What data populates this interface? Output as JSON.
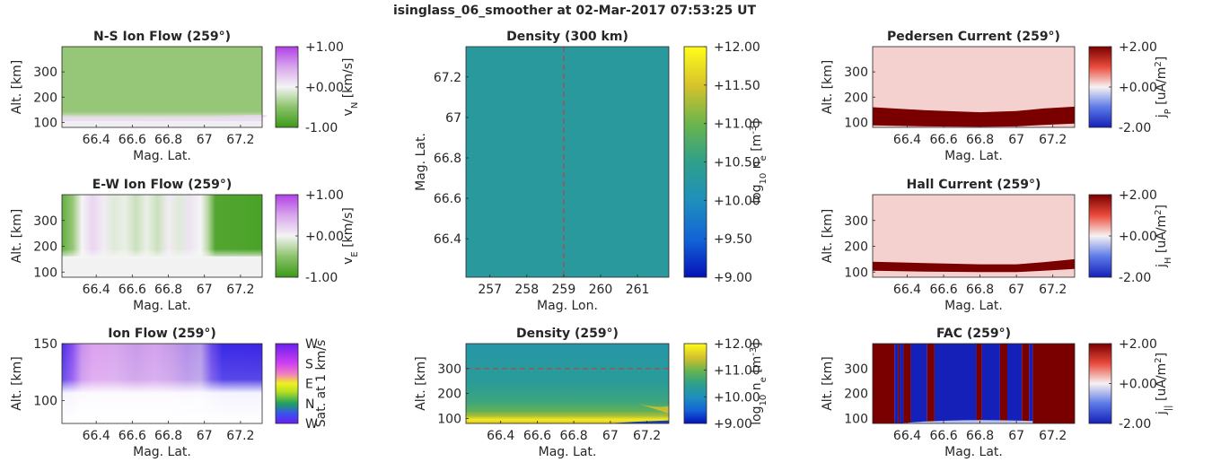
{
  "figure": {
    "title": "isinglass_06_smoother at 02-Mar-2017 07:53:25 UT"
  },
  "chart_data": [
    {
      "id": "ns_ion_flow",
      "type": "heatmap",
      "title": "N-S Ion Flow (259°)",
      "xlabel": "Mag. Lat.",
      "ylabel": "Alt. [km]",
      "xlim": [
        66.21,
        67.32
      ],
      "ylim": [
        80,
        400
      ],
      "xticks": [
        66.4,
        66.6,
        66.8,
        67,
        67.2
      ],
      "xticklabels": [
        "66.4",
        "66.6",
        "66.8",
        "67",
        "67.2"
      ],
      "yticks": [
        100,
        200,
        300
      ],
      "yticklabels": [
        "100",
        "200",
        "300"
      ],
      "colorbar": {
        "label": "vN [km/s]",
        "label_main": "v",
        "label_sub": "N",
        "label_tail": " [km/s]",
        "range": [
          -1,
          1
        ],
        "ticks": [
          -1,
          0,
          1
        ],
        "ticklabels": [
          "-1.00",
          "+0.00",
          "+1.00"
        ],
        "colormap": "green-white-purple"
      },
      "field": {
        "description": "nearly uniform weak southward flow above ~140 km, near-zero in lower E-region",
        "value_above_140km": -0.45,
        "value_below_140km": 0.05
      }
    },
    {
      "id": "ew_ion_flow",
      "type": "heatmap",
      "title": "E-W Ion Flow (259°)",
      "xlabel": "Mag. Lat.",
      "ylabel": "Alt. [km]",
      "xlim": [
        66.21,
        67.32
      ],
      "ylim": [
        80,
        400
      ],
      "xticks": [
        66.4,
        66.6,
        66.8,
        67,
        67.2
      ],
      "xticklabels": [
        "66.4",
        "66.6",
        "66.8",
        "67",
        "67.2"
      ],
      "yticks": [
        100,
        200,
        300
      ],
      "yticklabels": [
        "100",
        "200",
        "300"
      ],
      "colorbar": {
        "label": "vE [km/s]",
        "label_main": "v",
        "label_sub": "E",
        "label_tail": " [km/s]",
        "range": [
          -1,
          1
        ],
        "ticks": [
          -1,
          0,
          1
        ],
        "ticklabels": [
          "-1.00",
          "+0.00",
          "+1.00"
        ],
        "colormap": "green-white-purple"
      },
      "columns": [
        {
          "lat": 66.21,
          "value": -0.75
        },
        {
          "lat": 66.27,
          "value": -0.45
        },
        {
          "lat": 66.32,
          "value": 0.0
        },
        {
          "lat": 66.38,
          "value": 0.2
        },
        {
          "lat": 66.44,
          "value": 0.05
        },
        {
          "lat": 66.5,
          "value": -0.1
        },
        {
          "lat": 66.56,
          "value": -0.05
        },
        {
          "lat": 66.62,
          "value": -0.2
        },
        {
          "lat": 66.68,
          "value": -0.05
        },
        {
          "lat": 66.74,
          "value": -0.2
        },
        {
          "lat": 66.8,
          "value": 0.05
        },
        {
          "lat": 66.86,
          "value": -0.1
        },
        {
          "lat": 66.92,
          "value": 0.1
        },
        {
          "lat": 66.98,
          "value": 0.0
        },
        {
          "lat": 67.02,
          "value": -0.3
        },
        {
          "lat": 67.06,
          "value": -0.85
        },
        {
          "lat": 67.32,
          "value": -0.9
        }
      ]
    },
    {
      "id": "ion_flow",
      "type": "heatmap",
      "title": "Ion Flow (259°)",
      "xlabel": "Mag. Lat.",
      "ylabel": "Alt. [km]",
      "xlim": [
        66.21,
        67.32
      ],
      "ylim": [
        80,
        150
      ],
      "xticks": [
        66.4,
        66.6,
        66.8,
        67,
        67.2
      ],
      "xticklabels": [
        "66.4",
        "66.6",
        "66.8",
        "67",
        "67.2"
      ],
      "yticks": [
        100,
        150
      ],
      "yticklabels": [
        "100",
        "150"
      ],
      "colorbar": {
        "label": "Sat. at 1 km/s",
        "ticklabels": [
          "W",
          "N",
          "E",
          "S",
          "W"
        ],
        "colormap": "direction-wheel"
      },
      "columns": [
        {
          "lat": 66.21,
          "hex": "#4a2ee8"
        },
        {
          "lat": 66.27,
          "hex": "#8a4ff0"
        },
        {
          "lat": 66.32,
          "hex": "#c890ee"
        },
        {
          "lat": 66.38,
          "hex": "#dca0ef"
        },
        {
          "lat": 66.5,
          "hex": "#d8a6ee"
        },
        {
          "lat": 66.62,
          "hex": "#c99ae8"
        },
        {
          "lat": 66.72,
          "hex": "#d4a2ee"
        },
        {
          "lat": 66.82,
          "hex": "#c79ae9"
        },
        {
          "lat": 66.9,
          "hex": "#b48ee8"
        },
        {
          "lat": 66.98,
          "hex": "#b69be8"
        },
        {
          "lat": 67.04,
          "hex": "#6a48ea"
        },
        {
          "lat": 67.1,
          "hex": "#3a28e6"
        },
        {
          "lat": 67.32,
          "hex": "#3a26e4"
        }
      ]
    },
    {
      "id": "density_300km",
      "type": "heatmap",
      "title": "Density (300 km)",
      "xlabel": "Mag. Lon.",
      "ylabel": "Mag. Lat.",
      "xlim": [
        256.35,
        261.85
      ],
      "ylim": [
        66.21,
        67.35
      ],
      "xticks": [
        257,
        258,
        259,
        260,
        261
      ],
      "xticklabels": [
        "257",
        "258",
        "259",
        "260",
        "261"
      ],
      "yticks": [
        66.4,
        66.6,
        66.8,
        67,
        67.2
      ],
      "yticklabels": [
        "66.4",
        "66.6",
        "66.8",
        "67",
        "67.2"
      ],
      "colorbar": {
        "label": "log10 ne [m-3]",
        "range": [
          9,
          12
        ],
        "ticks": [
          9,
          9.5,
          10,
          10.5,
          11,
          11.5,
          12
        ],
        "ticklabels": [
          "+9.00",
          "+9.50",
          "+10.00",
          "+10.50",
          "+11.00",
          "+11.50",
          "+12.00"
        ],
        "colormap": "parula"
      },
      "field_log10_ne": 10.3,
      "marker_line": {
        "orientation": "vertical",
        "value": 259,
        "color": "#d93030"
      }
    },
    {
      "id": "density_259",
      "type": "heatmap",
      "title": "Density (259°)",
      "xlabel": "Mag. Lat.",
      "ylabel": "Alt. [km]",
      "xlim": [
        66.21,
        67.32
      ],
      "ylim": [
        80,
        400
      ],
      "xticks": [
        66.4,
        66.6,
        66.8,
        67,
        67.2
      ],
      "xticklabels": [
        "66.4",
        "66.6",
        "66.8",
        "67",
        "67.2"
      ],
      "yticks": [
        100,
        200,
        300
      ],
      "yticklabels": [
        "100",
        "200",
        "300"
      ],
      "colorbar": {
        "label": "log10 ne [m-3]",
        "range": [
          9,
          12
        ],
        "ticks": [
          9,
          10,
          11,
          12
        ],
        "ticklabels": [
          "+9.00",
          "+10.00",
          "+11.00",
          "+12.00"
        ],
        "colormap": "parula"
      },
      "profile": [
        {
          "alt": 80,
          "value": 11.5
        },
        {
          "alt": 95,
          "value": 11.85
        },
        {
          "alt": 110,
          "value": 11.3
        },
        {
          "alt": 130,
          "value": 10.9
        },
        {
          "alt": 170,
          "value": 10.6
        },
        {
          "alt": 250,
          "value": 10.35
        },
        {
          "alt": 400,
          "value": 10.2
        }
      ],
      "marker_line": {
        "orientation": "horizontal",
        "value": 300,
        "color": "#d93030"
      }
    },
    {
      "id": "pedersen_current",
      "type": "heatmap",
      "title": "Pedersen Current (259°)",
      "xlabel": "Mag. Lat.",
      "ylabel": "Alt. [km]",
      "xlim": [
        66.21,
        67.32
      ],
      "ylim": [
        80,
        400
      ],
      "xticks": [
        66.4,
        66.6,
        66.8,
        67,
        67.2
      ],
      "xticklabels": [
        "66.4",
        "66.6",
        "66.8",
        "67",
        "67.2"
      ],
      "yticks": [
        100,
        200,
        300
      ],
      "yticklabels": [
        "100",
        "200",
        "300"
      ],
      "colorbar": {
        "label": "jP [uA/m2]",
        "label_main": "j",
        "label_sub": "P",
        "label_tail": " [uA/m",
        "label_sup": "2",
        "label_end": "]",
        "range": [
          -2,
          2
        ],
        "ticks": [
          -2,
          0,
          2
        ],
        "ticklabels": [
          "-2.00",
          "+0.00",
          "+2.00"
        ],
        "colormap": "blue-white-red"
      },
      "band": {
        "value": 2.0,
        "background": 0.2,
        "upper_km": [
          [
            66.21,
            160
          ],
          [
            66.5,
            148
          ],
          [
            66.8,
            140
          ],
          [
            67.0,
            145
          ],
          [
            67.15,
            155
          ],
          [
            67.32,
            162
          ]
        ],
        "lower_km": [
          [
            66.21,
            88
          ],
          [
            66.5,
            84
          ],
          [
            66.8,
            82
          ],
          [
            67.0,
            84
          ],
          [
            67.15,
            90
          ],
          [
            67.32,
            95
          ]
        ]
      }
    },
    {
      "id": "hall_current",
      "type": "heatmap",
      "title": "Hall Current (259°)",
      "xlabel": "Mag. Lat.",
      "ylabel": "Alt. [km]",
      "xlim": [
        66.21,
        67.32
      ],
      "ylim": [
        80,
        400
      ],
      "xticks": [
        66.4,
        66.6,
        66.8,
        67,
        67.2
      ],
      "xticklabels": [
        "66.4",
        "66.6",
        "66.8",
        "67",
        "67.2"
      ],
      "yticks": [
        100,
        200,
        300
      ],
      "yticklabels": [
        "100",
        "200",
        "300"
      ],
      "colorbar": {
        "label": "jH [uA/m2]",
        "label_main": "j",
        "label_sub": "H",
        "label_tail": " [uA/m",
        "label_sup": "2",
        "label_end": "]",
        "range": [
          -2,
          2
        ],
        "ticks": [
          -2,
          0,
          2
        ],
        "ticklabels": [
          "-2.00",
          "+0.00",
          "+2.00"
        ],
        "colormap": "blue-white-red"
      },
      "band": {
        "value": 2.0,
        "background": 0.2,
        "upper_km": [
          [
            66.21,
            140
          ],
          [
            66.5,
            135
          ],
          [
            66.8,
            130
          ],
          [
            67.0,
            130
          ],
          [
            67.15,
            138
          ],
          [
            67.32,
            150
          ]
        ],
        "lower_km": [
          [
            66.21,
            105
          ],
          [
            66.5,
            102
          ],
          [
            66.8,
            100
          ],
          [
            67.0,
            100
          ],
          [
            67.15,
            105
          ],
          [
            67.32,
            112
          ]
        ]
      }
    },
    {
      "id": "fac",
      "type": "heatmap",
      "title": "FAC (259°)",
      "xlabel": "Mag. Lat.",
      "ylabel": "Alt. [km]",
      "xlim": [
        66.21,
        67.32
      ],
      "ylim": [
        80,
        400
      ],
      "xticks": [
        66.4,
        66.6,
        66.8,
        67,
        67.2
      ],
      "xticklabels": [
        "66.4",
        "66.6",
        "66.8",
        "67",
        "67.2"
      ],
      "yticks": [
        100,
        200,
        300
      ],
      "yticklabels": [
        "100",
        "200",
        "300"
      ],
      "colorbar": {
        "label": "j|| [uA/m2]",
        "label_main": "j",
        "label_sub": "||",
        "label_tail": " [uA/m",
        "label_sup": "2",
        "label_end": "]",
        "range": [
          -2,
          2
        ],
        "ticks": [
          -2,
          0,
          2
        ],
        "ticklabels": [
          "-2.00",
          "+0.00",
          "+2.00"
        ],
        "colormap": "blue-white-red"
      },
      "column_signs": [
        {
          "from": 66.21,
          "to": 66.33,
          "value": 2
        },
        {
          "from": 66.33,
          "to": 66.35,
          "value": -2
        },
        {
          "from": 66.35,
          "to": 66.36,
          "value": 2
        },
        {
          "from": 66.36,
          "to": 66.38,
          "value": -2
        },
        {
          "from": 66.38,
          "to": 66.42,
          "value": 2
        },
        {
          "from": 66.42,
          "to": 66.51,
          "value": -2
        },
        {
          "from": 66.51,
          "to": 66.55,
          "value": 2
        },
        {
          "from": 66.55,
          "to": 66.78,
          "value": -2
        },
        {
          "from": 66.78,
          "to": 66.81,
          "value": 2
        },
        {
          "from": 66.81,
          "to": 66.91,
          "value": -2
        },
        {
          "from": 66.91,
          "to": 66.95,
          "value": 2
        },
        {
          "from": 66.95,
          "to": 67.03,
          "value": -2
        },
        {
          "from": 67.03,
          "to": 67.07,
          "value": 2
        },
        {
          "from": 67.07,
          "to": 67.09,
          "value": -2
        },
        {
          "from": 67.09,
          "to": 67.32,
          "value": 2
        }
      ]
    }
  ]
}
